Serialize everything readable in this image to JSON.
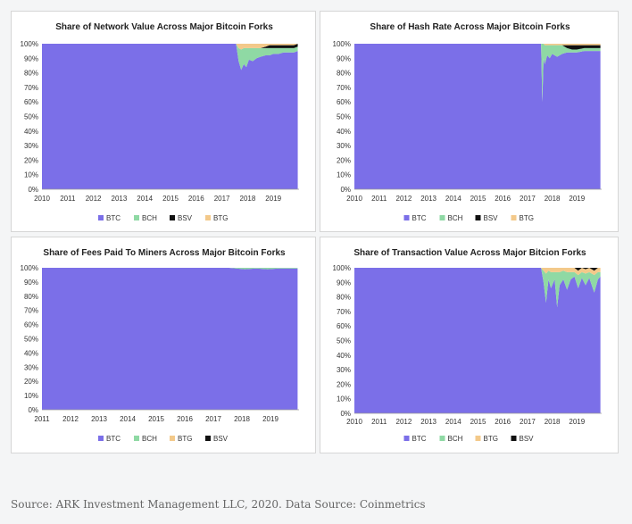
{
  "colors": {
    "BTC": "#7b6fe8",
    "BCH": "#8fd9a4",
    "BSV": "#111111",
    "BTG": "#f3c98a"
  },
  "source_text": "Source: ARK Investment Management LLC, 2020. Data Source: Coinmetrics",
  "chart_data": [
    {
      "type": "area",
      "title": "Share of Network Value Across Major Bitcoin Forks",
      "xlabel": "",
      "ylabel": "",
      "x_ticks": [
        "2010",
        "2011",
        "2012",
        "2013",
        "2014",
        "2015",
        "2016",
        "2017",
        "2018",
        "2019"
      ],
      "y_ticks": [
        "0%",
        "10%",
        "20%",
        "30%",
        "40%",
        "50%",
        "60%",
        "70%",
        "80%",
        "90%",
        "100%"
      ],
      "ylim": [
        0,
        100
      ],
      "xlim": [
        2010,
        2020
      ],
      "stacked": true,
      "legend": [
        "BTC",
        "BCH",
        "BSV",
        "BTG"
      ],
      "legend_position": "bottom",
      "x": [
        2010,
        2017.55,
        2017.65,
        2017.75,
        2017.85,
        2017.95,
        2018.05,
        2018.2,
        2018.35,
        2018.5,
        2018.7,
        2018.85,
        2019.0,
        2019.2,
        2019.4,
        2019.6,
        2019.8,
        2019.95
      ],
      "series": [
        {
          "name": "BTC",
          "values": [
            100,
            100,
            88,
            82,
            86,
            84,
            89,
            88,
            90,
            91,
            92,
            92,
            93,
            93,
            94,
            94,
            94,
            95
          ]
        },
        {
          "name": "BCH",
          "values": [
            0,
            0,
            9,
            14,
            11,
            13,
            8,
            9,
            7,
            6,
            5,
            5,
            4,
            4,
            3,
            3,
            3,
            3
          ]
        },
        {
          "name": "BSV",
          "values": [
            0,
            0,
            0,
            0,
            0,
            0,
            0,
            0,
            0,
            0,
            1,
            2,
            2,
            2,
            2,
            2,
            2,
            2
          ]
        },
        {
          "name": "BTG",
          "values": [
            0,
            0,
            3,
            4,
            3,
            3,
            3,
            3,
            3,
            3,
            2,
            1,
            1,
            1,
            1,
            1,
            1,
            0
          ]
        }
      ]
    },
    {
      "type": "area",
      "title": "Share of Hash Rate Across Major Bitcoin Forks",
      "xlabel": "",
      "ylabel": "",
      "x_ticks": [
        "2010",
        "2011",
        "2012",
        "2013",
        "2014",
        "2015",
        "2016",
        "2017",
        "2018",
        "2019"
      ],
      "y_ticks": [
        "0%",
        "10%",
        "20%",
        "30%",
        "40%",
        "50%",
        "60%",
        "70%",
        "80%",
        "90%",
        "100%"
      ],
      "ylim": [
        0,
        100
      ],
      "xlim": [
        2010,
        2020
      ],
      "stacked": true,
      "legend": [
        "BTC",
        "BCH",
        "BSV",
        "BTG"
      ],
      "legend_position": "bottom",
      "x": [
        2010,
        2017.55,
        2017.6,
        2017.65,
        2017.7,
        2017.8,
        2017.9,
        2018.0,
        2018.2,
        2018.4,
        2018.6,
        2018.8,
        2019.0,
        2019.3,
        2019.6,
        2019.95
      ],
      "series": [
        {
          "name": "BTC",
          "values": [
            100,
            100,
            60,
            90,
            86,
            92,
            90,
            93,
            91,
            93,
            94,
            94,
            94,
            95,
            95,
            95
          ]
        },
        {
          "name": "BCH",
          "values": [
            0,
            0,
            40,
            10,
            13,
            7,
            9,
            6,
            8,
            6,
            3,
            2,
            2,
            2,
            2,
            2
          ]
        },
        {
          "name": "BSV",
          "values": [
            0,
            0,
            0,
            0,
            0,
            0,
            0,
            0,
            0,
            0,
            2,
            3,
            3,
            2,
            2,
            2
          ]
        },
        {
          "name": "BTG",
          "values": [
            0,
            0,
            0,
            0,
            1,
            1,
            1,
            1,
            1,
            1,
            1,
            1,
            1,
            1,
            1,
            1
          ]
        }
      ]
    },
    {
      "type": "area",
      "title": "Share of Fees Paid To Miners Across Major Bitcoin Forks",
      "xlabel": "",
      "ylabel": "",
      "x_ticks": [
        "2011",
        "2012",
        "2013",
        "2014",
        "2015",
        "2016",
        "2017",
        "2018",
        "2019"
      ],
      "y_ticks": [
        "0%",
        "10%",
        "20%",
        "30%",
        "40%",
        "50%",
        "60%",
        "70%",
        "80%",
        "90%",
        "100%"
      ],
      "ylim": [
        0,
        100
      ],
      "xlim": [
        2011,
        2020
      ],
      "stacked": true,
      "legend": [
        "BTC",
        "BCH",
        "BTG",
        "BSV"
      ],
      "legend_position": "bottom",
      "x": [
        2011,
        2017.55,
        2017.8,
        2018.1,
        2018.5,
        2018.9,
        2019.3,
        2019.6,
        2019.95
      ],
      "series": [
        {
          "name": "BTC",
          "values": [
            100,
            100,
            99.5,
            99,
            99.5,
            99,
            99.5,
            99.5,
            99.5
          ]
        },
        {
          "name": "BCH",
          "values": [
            0,
            0,
            0.5,
            1,
            0.5,
            1,
            0.5,
            0.5,
            0.5
          ]
        },
        {
          "name": "BTG",
          "values": [
            0,
            0,
            0,
            0,
            0,
            0,
            0,
            0,
            0
          ]
        },
        {
          "name": "BSV",
          "values": [
            0,
            0,
            0,
            0,
            0,
            0,
            0,
            0,
            0
          ]
        }
      ]
    },
    {
      "type": "area",
      "title": "Share of Transaction Value Across Major Bitcion Forks",
      "xlabel": "",
      "ylabel": "",
      "x_ticks": [
        "2010",
        "2011",
        "2012",
        "2013",
        "2014",
        "2015",
        "2016",
        "2017",
        "2018",
        "2019"
      ],
      "y_ticks": [
        "0%",
        "10%",
        "20%",
        "30%",
        "40%",
        "50%",
        "60%",
        "70%",
        "80%",
        "90%",
        "100%"
      ],
      "ylim": [
        0,
        100
      ],
      "xlim": [
        2010,
        2020
      ],
      "stacked": true,
      "legend": [
        "BTC",
        "BCH",
        "BTG",
        "BSV"
      ],
      "legend_position": "bottom",
      "x": [
        2010,
        2017.55,
        2017.65,
        2017.75,
        2017.85,
        2017.95,
        2018.1,
        2018.2,
        2018.3,
        2018.45,
        2018.6,
        2018.75,
        2018.9,
        2019.05,
        2019.2,
        2019.35,
        2019.5,
        2019.7,
        2019.85,
        2019.95
      ],
      "series": [
        {
          "name": "BTC",
          "values": [
            100,
            100,
            90,
            76,
            92,
            86,
            92,
            73,
            88,
            92,
            85,
            92,
            94,
            86,
            93,
            88,
            93,
            83,
            92,
            94
          ]
        },
        {
          "name": "BCH",
          "values": [
            0,
            0,
            8,
            20,
            6,
            11,
            5,
            24,
            9,
            6,
            12,
            5,
            3,
            9,
            4,
            8,
            4,
            12,
            5,
            3
          ]
        },
        {
          "name": "BTG",
          "values": [
            0,
            0,
            2,
            4,
            2,
            3,
            3,
            3,
            3,
            2,
            3,
            3,
            3,
            3,
            3,
            3,
            3,
            3,
            3,
            3
          ]
        },
        {
          "name": "BSV",
          "values": [
            0,
            0,
            0,
            0,
            0,
            0,
            0,
            0,
            0,
            0,
            0,
            0,
            0,
            2,
            0,
            1,
            0,
            2,
            0,
            0
          ]
        }
      ]
    }
  ]
}
